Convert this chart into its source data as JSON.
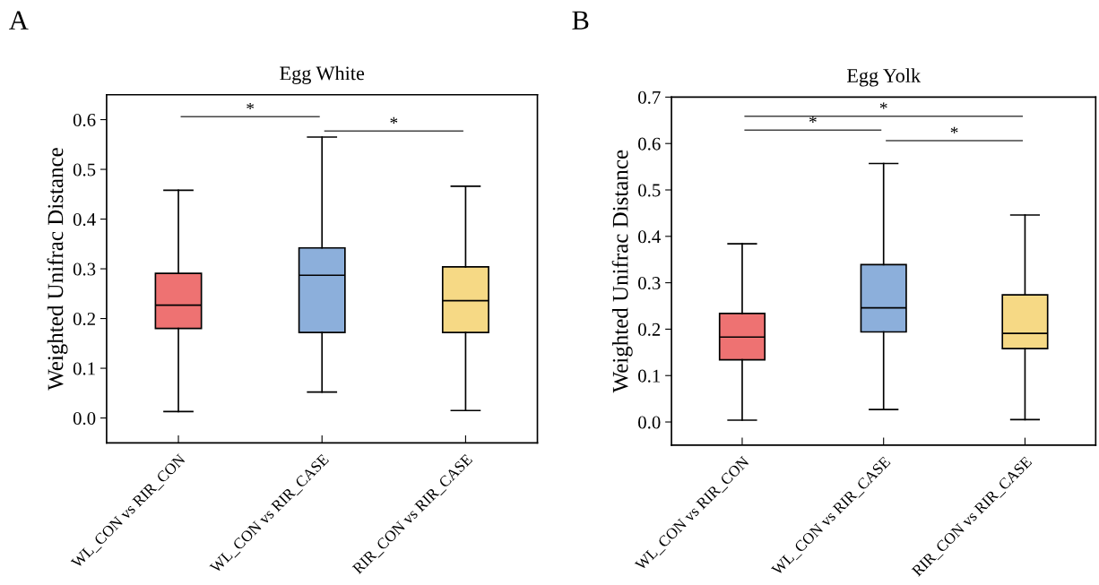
{
  "chart_data": [
    {
      "type": "box",
      "title": "Egg White",
      "ylabel": "Weighted Unifrac Distance",
      "categories": [
        "WL_CON vs RIR_CON",
        "WL_CON vs RIR_CASE",
        "RIR_CON vs RIR_CASE"
      ],
      "boxes": [
        {
          "low": 0.013,
          "q1": 0.18,
          "median": 0.227,
          "q3": 0.291,
          "high": 0.458
        },
        {
          "low": 0.052,
          "q1": 0.172,
          "median": 0.287,
          "q3": 0.342,
          "high": 0.565
        },
        {
          "low": 0.015,
          "q1": 0.172,
          "median": 0.236,
          "q3": 0.304,
          "high": 0.466
        }
      ],
      "colors": [
        "#ee7272",
        "#8cafdb",
        "#f6d985"
      ],
      "ylim": [
        -0.05,
        0.65
      ],
      "yticks": [
        {
          "value": 0,
          "label": "0.0"
        },
        0.1,
        0.2,
        0.3,
        0.4,
        0.5,
        0.6
      ],
      "grid": false,
      "legend": false,
      "annotations": [
        "A",
        "*",
        "*"
      ]
    },
    {
      "type": "box",
      "title": "Egg Yolk",
      "ylabel": "Weighted Unifrac Distance",
      "categories": [
        "WL_CON vs RIR_CON",
        "WL_CON vs RIR_CASE",
        "RIR_CON vs RIR_CASE"
      ],
      "boxes": [
        {
          "low": 0.004,
          "q1": 0.134,
          "median": 0.183,
          "q3": 0.234,
          "high": 0.384
        },
        {
          "low": 0.027,
          "q1": 0.194,
          "median": 0.246,
          "q3": 0.339,
          "high": 0.557
        },
        {
          "low": 0.005,
          "q1": 0.158,
          "median": 0.191,
          "q3": 0.274,
          "high": 0.446
        }
      ],
      "colors": [
        "#ee7272",
        "#8cafdb",
        "#f6d985"
      ],
      "ylim": [
        -0.05,
        0.7
      ],
      "yticks": [
        {
          "value": 0,
          "label": "0.0"
        },
        0.1,
        0.2,
        0.3,
        0.4,
        0.5,
        0.6,
        0.7
      ],
      "grid": false,
      "legend": false,
      "annotations": [
        "B",
        "*",
        "*",
        "*"
      ]
    }
  ]
}
